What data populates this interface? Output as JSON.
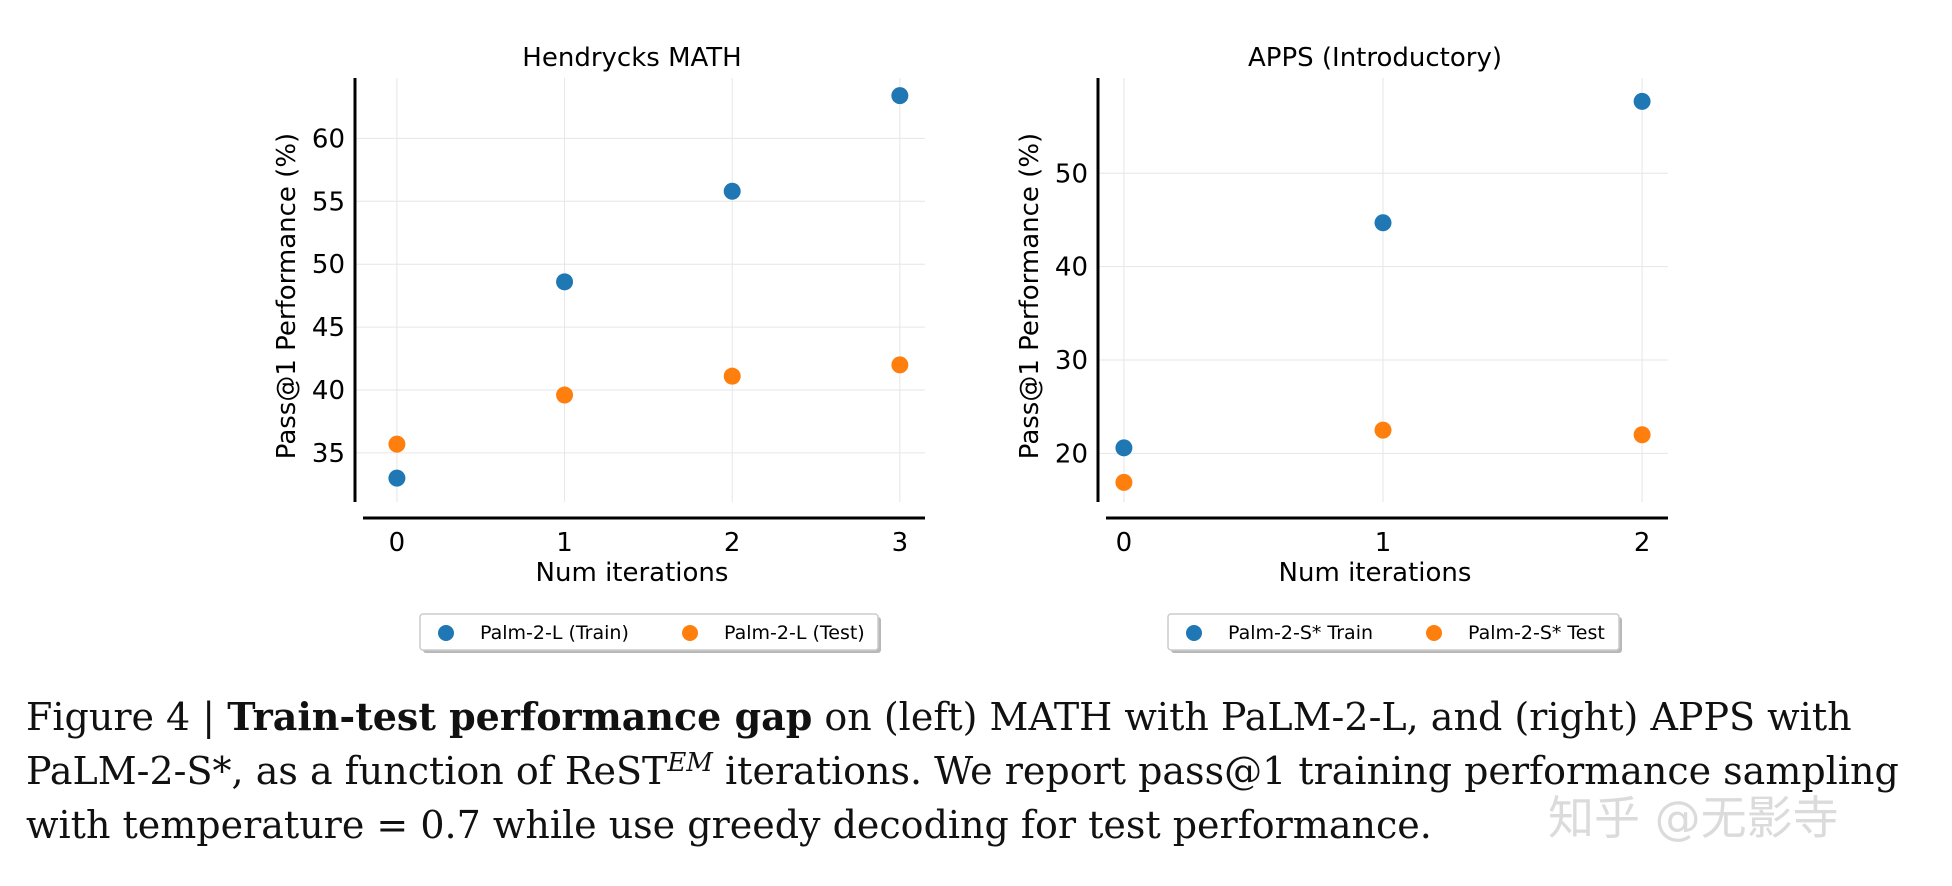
{
  "chart_data": [
    {
      "type": "scatter",
      "title": "Hendrycks MATH",
      "xlabel": "Num iterations",
      "ylabel": "Pass@1 Performance (%)",
      "x": [
        0,
        1,
        2,
        3
      ],
      "xticks": [
        "0",
        "1",
        "2",
        "3"
      ],
      "xlim": [
        -0.25,
        3.15
      ],
      "yticks": [
        35,
        40,
        45,
        50,
        55,
        60
      ],
      "ylim": [
        31.1,
        64.8
      ],
      "grid": true,
      "legend_position": "bottom-center",
      "series": [
        {
          "name": "Palm-2-L (Train)",
          "color": "#1f77b4",
          "values": [
            33.0,
            48.6,
            55.8,
            63.4
          ]
        },
        {
          "name": "Palm-2-L (Test)",
          "color": "#ff7f0e",
          "values": [
            35.7,
            39.6,
            41.1,
            42.0
          ]
        }
      ]
    },
    {
      "type": "scatter",
      "title": "APPS (Introductory)",
      "xlabel": "Num iterations",
      "ylabel": "Pass@1 Performance (%)",
      "x": [
        0,
        1,
        2
      ],
      "xticks": [
        "0",
        "1",
        "2"
      ],
      "xlim": [
        -0.1,
        2.1
      ],
      "yticks": [
        20,
        30,
        40,
        50
      ],
      "ylim": [
        14.8,
        60.2
      ],
      "grid": true,
      "legend_position": "bottom-center",
      "series": [
        {
          "name": "Palm-2-S* Train",
          "color": "#1f77b4",
          "values": [
            20.6,
            44.7,
            57.7
          ]
        },
        {
          "name": "Palm-2-S* Test",
          "color": "#ff7f0e",
          "values": [
            16.9,
            22.5,
            22.0
          ]
        }
      ]
    }
  ],
  "caption": {
    "prefix": "Figure 4 | ",
    "bold": "Train-test performance gap",
    "part1": " on (left) MATH with PaLM-2-L, and (right) APPS with PaLM-2-S*, as a function of ReST",
    "superscript": "EM",
    "part2": " iterations. We report pass@1 training performance sampling with temperature = 0.7 while use greedy decoding for test performance."
  },
  "watermark": "知乎 @无影寺"
}
